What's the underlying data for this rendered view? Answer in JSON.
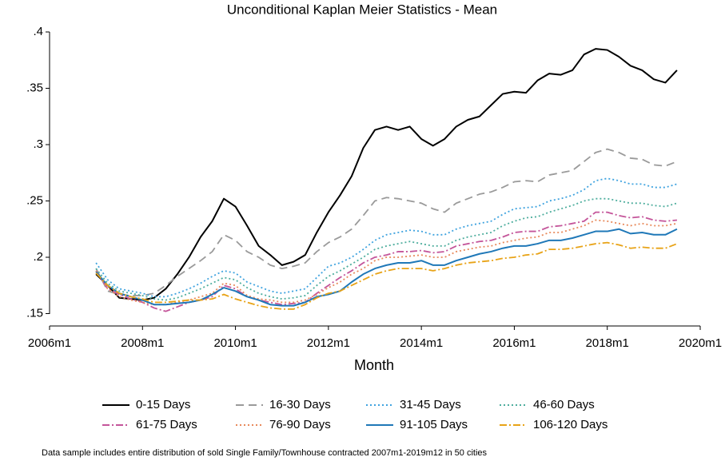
{
  "chart_data": {
    "type": "line",
    "title": "Unconditional Kaplan Meier Statistics - Mean",
    "x_label": "Month",
    "note": "Data sample includes entire distribution of sold Single Family/Townhouse contracted 2007m1-2019m12 in 50 cities",
    "x": [
      "2007m1",
      "2007m4",
      "2007m7",
      "2007m10",
      "2008m1",
      "2008m4",
      "2008m7",
      "2008m10",
      "2009m1",
      "2009m4",
      "2009m7",
      "2009m10",
      "2010m1",
      "2010m4",
      "2010m7",
      "2010m10",
      "2011m1",
      "2011m4",
      "2011m7",
      "2011m10",
      "2012m1",
      "2012m4",
      "2012m7",
      "2012m10",
      "2013m1",
      "2013m4",
      "2013m7",
      "2013m10",
      "2014m1",
      "2014m4",
      "2014m7",
      "2014m10",
      "2015m1",
      "2015m4",
      "2015m7",
      "2015m10",
      "2016m1",
      "2016m4",
      "2016m7",
      "2016m10",
      "2017m1",
      "2017m4",
      "2017m7",
      "2017m10",
      "2018m1",
      "2018m4",
      "2018m7",
      "2018m10",
      "2019m1",
      "2019m4",
      "2019m7"
    ],
    "xlim": [
      "2006m1",
      "2020m1"
    ],
    "xticks": [
      "2006m1",
      "2008m1",
      "2010m1",
      "2012m1",
      "2014m1",
      "2016m1",
      "2018m1",
      "2020m1"
    ],
    "ylim": [
      0.139,
      0.4
    ],
    "yticks": [
      {
        "value": 0.15,
        "label": ".15"
      },
      {
        "value": 0.2,
        "label": ".2"
      },
      {
        "value": 0.25,
        "label": ".25"
      },
      {
        "value": 0.3,
        "label": ".3"
      },
      {
        "value": 0.35,
        "label": ".35"
      },
      {
        "value": 0.4,
        "label": ".4"
      }
    ],
    "series": [
      {
        "name": "0-15 Days",
        "color": "#000000",
        "dash": "solid",
        "values": [
          0.185,
          0.175,
          0.164,
          0.163,
          0.162,
          0.164,
          0.172,
          0.185,
          0.2,
          0.218,
          0.232,
          0.252,
          0.245,
          0.228,
          0.21,
          0.202,
          0.193,
          0.196,
          0.202,
          0.222,
          0.24,
          0.255,
          0.272,
          0.297,
          0.313,
          0.316,
          0.313,
          0.316,
          0.305,
          0.299,
          0.305,
          0.316,
          0.322,
          0.325,
          0.335,
          0.345,
          0.347,
          0.346,
          0.357,
          0.363,
          0.362,
          0.366,
          0.38,
          0.385,
          0.384,
          0.378,
          0.37,
          0.366,
          0.358,
          0.355,
          0.366
        ]
      },
      {
        "name": "16-30 Days",
        "color": "#9a9a9a",
        "dash": "dashed",
        "values": [
          0.19,
          0.17,
          0.167,
          0.166,
          0.166,
          0.168,
          0.175,
          0.183,
          0.19,
          0.197,
          0.205,
          0.22,
          0.215,
          0.205,
          0.2,
          0.193,
          0.19,
          0.192,
          0.195,
          0.205,
          0.213,
          0.218,
          0.225,
          0.237,
          0.25,
          0.253,
          0.252,
          0.25,
          0.248,
          0.243,
          0.24,
          0.248,
          0.252,
          0.256,
          0.258,
          0.262,
          0.267,
          0.268,
          0.267,
          0.273,
          0.275,
          0.277,
          0.285,
          0.293,
          0.296,
          0.293,
          0.288,
          0.287,
          0.282,
          0.281,
          0.285
        ]
      },
      {
        "name": "31-45 Days",
        "color": "#3fa3df",
        "dash": "dotted",
        "values": [
          0.195,
          0.18,
          0.172,
          0.17,
          0.168,
          0.165,
          0.165,
          0.168,
          0.172,
          0.177,
          0.183,
          0.188,
          0.186,
          0.178,
          0.174,
          0.17,
          0.168,
          0.17,
          0.172,
          0.182,
          0.192,
          0.195,
          0.2,
          0.207,
          0.215,
          0.22,
          0.222,
          0.224,
          0.223,
          0.22,
          0.22,
          0.225,
          0.228,
          0.23,
          0.232,
          0.238,
          0.243,
          0.244,
          0.245,
          0.25,
          0.252,
          0.255,
          0.26,
          0.268,
          0.27,
          0.268,
          0.265,
          0.265,
          0.262,
          0.262,
          0.265
        ]
      },
      {
        "name": "46-60 Days",
        "color": "#4fae9e",
        "dash": "dotted",
        "values": [
          0.19,
          0.177,
          0.17,
          0.168,
          0.166,
          0.163,
          0.162,
          0.164,
          0.168,
          0.172,
          0.177,
          0.182,
          0.18,
          0.173,
          0.168,
          0.165,
          0.163,
          0.164,
          0.166,
          0.175,
          0.183,
          0.188,
          0.194,
          0.2,
          0.207,
          0.21,
          0.212,
          0.214,
          0.212,
          0.21,
          0.21,
          0.215,
          0.218,
          0.22,
          0.222,
          0.228,
          0.232,
          0.235,
          0.236,
          0.24,
          0.243,
          0.246,
          0.25,
          0.252,
          0.252,
          0.25,
          0.248,
          0.248,
          0.246,
          0.245,
          0.248
        ]
      },
      {
        "name": "61-75 Days",
        "color": "#c4559a",
        "dash": "dashdot",
        "values": [
          0.188,
          0.172,
          0.167,
          0.163,
          0.16,
          0.155,
          0.152,
          0.156,
          0.16,
          0.162,
          0.165,
          0.175,
          0.172,
          0.165,
          0.162,
          0.16,
          0.158,
          0.159,
          0.16,
          0.168,
          0.175,
          0.182,
          0.188,
          0.195,
          0.2,
          0.202,
          0.205,
          0.205,
          0.206,
          0.204,
          0.205,
          0.21,
          0.212,
          0.214,
          0.215,
          0.218,
          0.222,
          0.223,
          0.223,
          0.227,
          0.228,
          0.23,
          0.232,
          0.24,
          0.24,
          0.237,
          0.235,
          0.236,
          0.233,
          0.232,
          0.233
        ]
      },
      {
        "name": "76-90 Days",
        "color": "#e88a5c",
        "dash": "dotted",
        "values": [
          0.188,
          0.172,
          0.165,
          0.162,
          0.16,
          0.158,
          0.158,
          0.16,
          0.162,
          0.165,
          0.168,
          0.177,
          0.175,
          0.166,
          0.163,
          0.162,
          0.16,
          0.16,
          0.162,
          0.167,
          0.173,
          0.178,
          0.185,
          0.19,
          0.197,
          0.2,
          0.2,
          0.201,
          0.202,
          0.2,
          0.2,
          0.205,
          0.207,
          0.209,
          0.21,
          0.213,
          0.215,
          0.217,
          0.218,
          0.222,
          0.222,
          0.225,
          0.228,
          0.233,
          0.232,
          0.23,
          0.228,
          0.23,
          0.228,
          0.228,
          0.23
        ]
      },
      {
        "name": "91-105 Days",
        "color": "#1f78b8",
        "dash": "solid",
        "values": [
          0.187,
          0.175,
          0.168,
          0.165,
          0.162,
          0.158,
          0.158,
          0.159,
          0.16,
          0.162,
          0.167,
          0.173,
          0.17,
          0.165,
          0.162,
          0.158,
          0.157,
          0.157,
          0.16,
          0.165,
          0.167,
          0.17,
          0.178,
          0.185,
          0.19,
          0.193,
          0.195,
          0.195,
          0.197,
          0.193,
          0.193,
          0.197,
          0.2,
          0.203,
          0.205,
          0.208,
          0.21,
          0.21,
          0.212,
          0.215,
          0.215,
          0.217,
          0.22,
          0.223,
          0.223,
          0.225,
          0.221,
          0.222,
          0.22,
          0.22,
          0.225
        ]
      },
      {
        "name": "106-120 Days",
        "color": "#e8a317",
        "dash": "dashdot",
        "values": [
          0.186,
          0.175,
          0.168,
          0.165,
          0.163,
          0.16,
          0.16,
          0.161,
          0.162,
          0.162,
          0.163,
          0.167,
          0.163,
          0.16,
          0.157,
          0.155,
          0.154,
          0.154,
          0.158,
          0.164,
          0.168,
          0.17,
          0.175,
          0.18,
          0.185,
          0.188,
          0.19,
          0.19,
          0.19,
          0.188,
          0.19,
          0.193,
          0.195,
          0.196,
          0.197,
          0.199,
          0.2,
          0.202,
          0.203,
          0.207,
          0.207,
          0.208,
          0.21,
          0.212,
          0.213,
          0.211,
          0.208,
          0.209,
          0.208,
          0.208,
          0.212
        ]
      }
    ]
  }
}
